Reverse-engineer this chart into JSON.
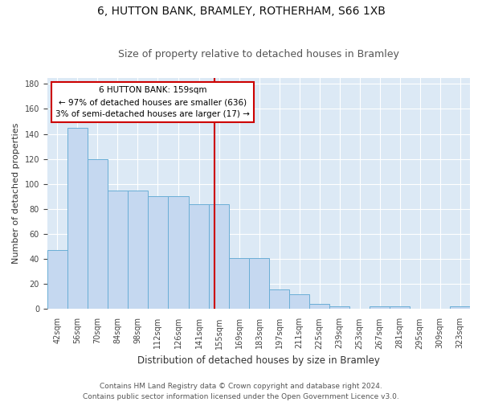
{
  "title1": "6, HUTTON BANK, BRAMLEY, ROTHERHAM, S66 1XB",
  "title2": "Size of property relative to detached houses in Bramley",
  "xlabel": "Distribution of detached houses by size in Bramley",
  "ylabel": "Number of detached properties",
  "bar_labels": [
    "42sqm",
    "56sqm",
    "70sqm",
    "84sqm",
    "98sqm",
    "112sqm",
    "126sqm",
    "141sqm",
    "155sqm",
    "169sqm",
    "183sqm",
    "197sqm",
    "211sqm",
    "225sqm",
    "239sqm",
    "253sqm",
    "267sqm",
    "281sqm",
    "295sqm",
    "309sqm",
    "323sqm"
  ],
  "bar_values": [
    47,
    145,
    120,
    95,
    95,
    90,
    90,
    84,
    84,
    41,
    41,
    16,
    12,
    4,
    2,
    0,
    2,
    2,
    0,
    0,
    2
  ],
  "bin_edges": [
    42,
    56,
    70,
    84,
    98,
    112,
    126,
    141,
    155,
    169,
    183,
    197,
    211,
    225,
    239,
    253,
    267,
    281,
    295,
    309,
    323,
    337
  ],
  "bar_color": "#c5d8f0",
  "bar_edge_color": "#6aaed6",
  "property_line_x": 159,
  "property_line_color": "#cc0000",
  "annotation_text": "6 HUTTON BANK: 159sqm\n← 97% of detached houses are smaller (636)\n3% of semi-detached houses are larger (17) →",
  "annotation_box_color": "#ffffff",
  "annotation_box_edge": "#cc0000",
  "ylim": [
    0,
    185
  ],
  "yticks": [
    0,
    20,
    40,
    60,
    80,
    100,
    120,
    140,
    160,
    180
  ],
  "background_color": "#dce9f5",
  "grid_color": "#ffffff",
  "footer_line1": "Contains HM Land Registry data © Crown copyright and database right 2024.",
  "footer_line2": "Contains public sector information licensed under the Open Government Licence v3.0.",
  "title1_fontsize": 10,
  "title2_fontsize": 9,
  "xlabel_fontsize": 8.5,
  "ylabel_fontsize": 8,
  "tick_fontsize": 7,
  "annotation_fontsize": 7.5,
  "footer_fontsize": 6.5
}
